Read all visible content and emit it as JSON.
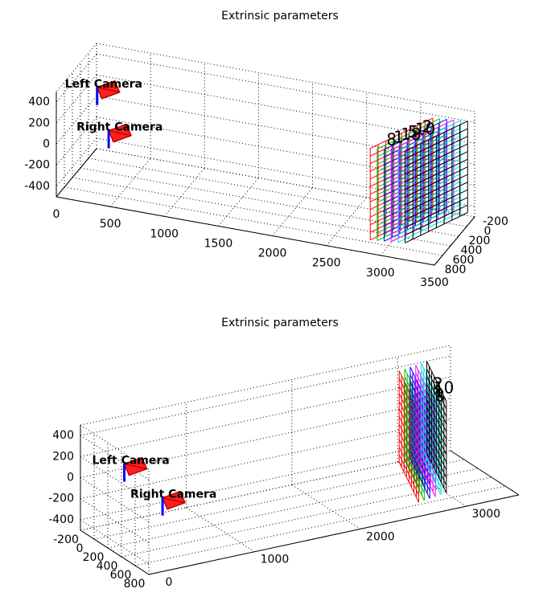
{
  "chart_data": [
    {
      "type": "3d",
      "title": "Extrinsic parameters",
      "xlim": [
        0,
        3500
      ],
      "xticks": [
        0,
        500,
        1000,
        1500,
        2000,
        2500,
        3000,
        3500
      ],
      "ylim": [
        -200,
        800
      ],
      "yticks": [
        -200,
        0,
        200,
        400,
        600,
        800
      ],
      "zlim": [
        -500,
        500
      ],
      "zticks": [
        -400,
        -200,
        0,
        200,
        400
      ],
      "grid": true,
      "cameras": [
        "Left Camera",
        "Right Camera"
      ],
      "board_labels": [
        "8",
        "1",
        "18",
        "5",
        "10",
        "2"
      ]
    },
    {
      "type": "3d",
      "title": "Extrinsic parameters",
      "xlim": [
        0,
        3500
      ],
      "xticks": [
        0,
        1000,
        2000,
        3000
      ],
      "ylim": [
        -200,
        800
      ],
      "yticks": [
        -200,
        0,
        200,
        400,
        600,
        800
      ],
      "zlim": [
        -500,
        500
      ],
      "zticks": [
        -400,
        -200,
        0,
        200,
        400
      ],
      "grid": true,
      "cameras": [
        "Left Camera",
        "Right Camera"
      ],
      "board_labels": [
        "8",
        "1",
        "10",
        "2"
      ]
    }
  ]
}
